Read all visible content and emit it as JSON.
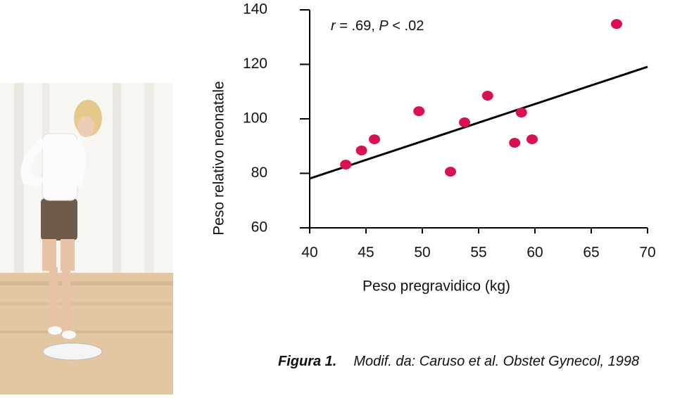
{
  "chart_data": {
    "type": "scatter",
    "annotation": [
      "r",
      " = .69, ",
      "P",
      " < .02"
    ],
    "x_label": "Peso pregravidico (kg)",
    "y_label": "Peso relativo neonatale",
    "x": [
      43.2,
      44.6,
      45.75,
      49.7,
      52.5,
      53.75,
      55.8,
      58.8,
      58.2,
      59.75,
      67.25
    ],
    "values": [
      83.2,
      88.4,
      92.5,
      102.8,
      80.6,
      98.7,
      108.5,
      102.3,
      91.2,
      92.5,
      134.8
    ],
    "color": "#d9124f",
    "trend_line": {
      "x": [
        40,
        70
      ],
      "y": [
        78.1,
        119.1
      ],
      "color": "#000000"
    },
    "xlim": [
      40,
      70
    ],
    "xticks": [
      40,
      45,
      50,
      55,
      60,
      65,
      70
    ],
    "ylim": [
      60,
      140
    ],
    "yticks": [
      60,
      80,
      100,
      120,
      140
    ],
    "caption": {
      "label": "Figura 1.",
      "text": "Modif. da: Caruso et al. Obstet Gynecol, 1998"
    }
  }
}
